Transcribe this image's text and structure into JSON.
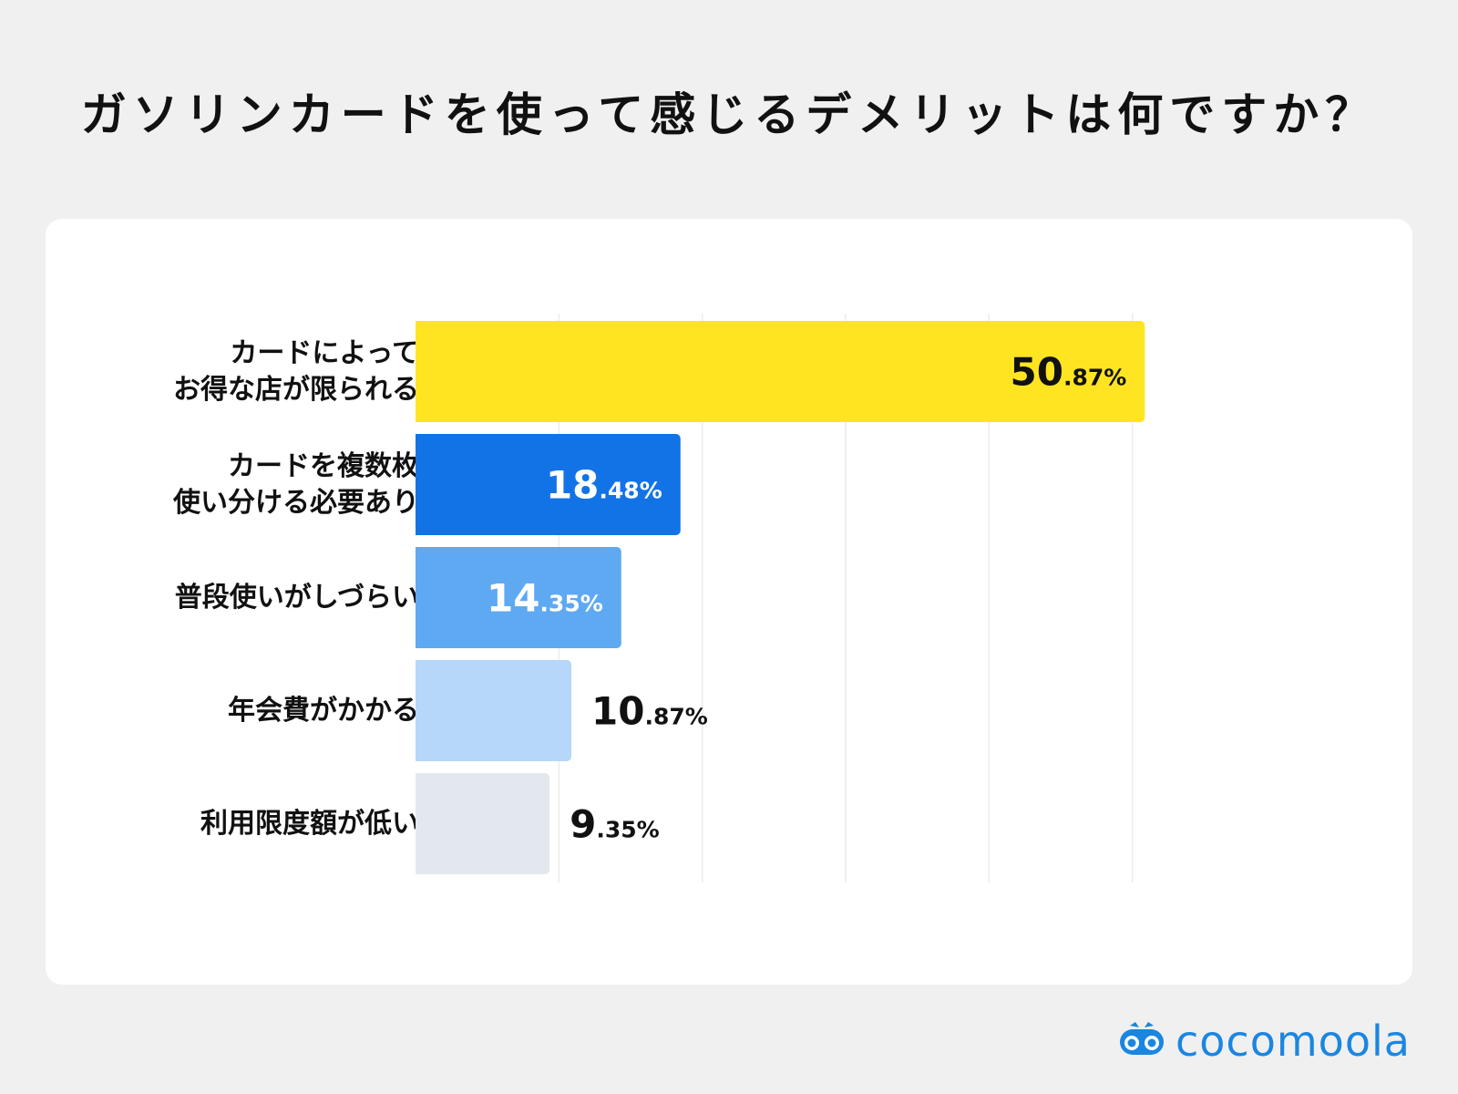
{
  "title": "ガソリンカードを使って感じるデメリットは何ですか？",
  "brand": {
    "name": "cocomoola",
    "icon": "binoculars-icon",
    "color": "#1b86e0"
  },
  "chart_data": {
    "type": "bar",
    "orientation": "horizontal",
    "categories": [
      "カードによって\nお得な店が限られる",
      "カードを複数枚\n使い分ける必要あり",
      "普段使いがしづらい",
      "年会費がかかる",
      "利用限度額が低い"
    ],
    "values": [
      50.87,
      18.48,
      14.35,
      10.87,
      9.35
    ],
    "value_labels": [
      {
        "int": "50",
        "dec": ".87%"
      },
      {
        "int": "18",
        "dec": ".48%"
      },
      {
        "int": "14",
        "dec": ".35%"
      },
      {
        "int": "10",
        "dec": ".87%"
      },
      {
        "int": "9",
        "dec": ".35%"
      }
    ],
    "colors": [
      "#ffe521",
      "#1273e6",
      "#5ea9f2",
      "#b6d7f9",
      "#e3e8ef"
    ],
    "label_colors": [
      "#111111",
      "#ffffff",
      "#ffffff",
      "#111111",
      "#111111"
    ],
    "label_inside": [
      true,
      true,
      true,
      false,
      false
    ],
    "xlim": [
      0,
      60
    ],
    "grid": true
  }
}
